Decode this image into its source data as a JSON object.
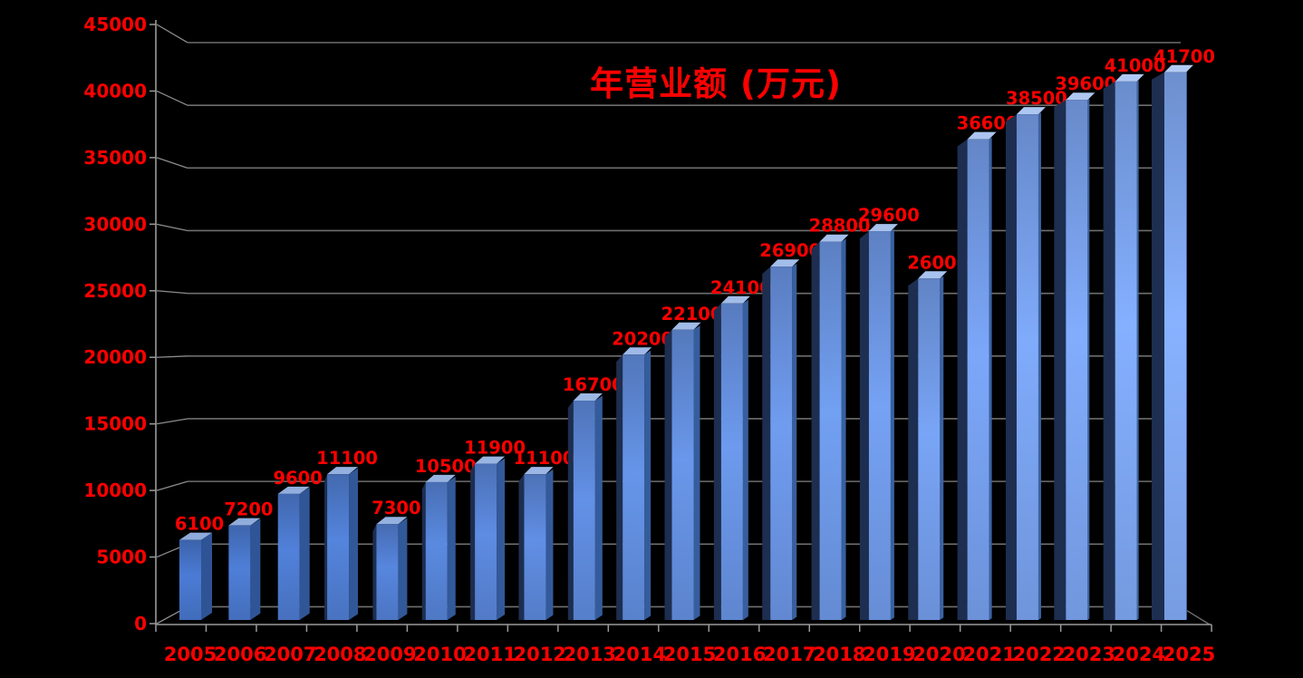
{
  "chart_data": {
    "type": "bar",
    "title": "年营业额 (万元)",
    "categories": [
      "2005",
      "2006",
      "2007",
      "2008",
      "2009",
      "2010",
      "2011",
      "2012",
      "2013",
      "2014",
      "2015",
      "2016",
      "2017",
      "2018",
      "2019",
      "2020",
      "2021",
      "2022",
      "2023",
      "2024",
      "2025"
    ],
    "values": [
      6100,
      7200,
      9600,
      11100,
      7300,
      10500,
      11900,
      11100,
      16700,
      20200,
      22100,
      24100,
      26900,
      28800,
      29600,
      26000,
      36600,
      38500,
      39600,
      41000,
      41700
    ],
    "xlabel": "",
    "ylabel": "",
    "ylim": [
      0,
      45000
    ],
    "yticks": [
      0,
      5000,
      10000,
      15000,
      20000,
      25000,
      30000,
      35000,
      40000,
      45000
    ],
    "grid": true,
    "legend_position": "none",
    "style_3d": true,
    "colors": {
      "background": "#000000",
      "label_red": "#FF0000",
      "grid_grey": "#6E6E6E",
      "axis_grey": "#9A9A9A",
      "bar_front_left": "#4470C2",
      "bar_front_right": "#7CA2EA",
      "bar_side_dark": "#2E5495",
      "bar_side_navy": "#1D2E50",
      "bar_top_left": "#8EABDB",
      "bar_top_right": "#B2CBF5"
    }
  }
}
